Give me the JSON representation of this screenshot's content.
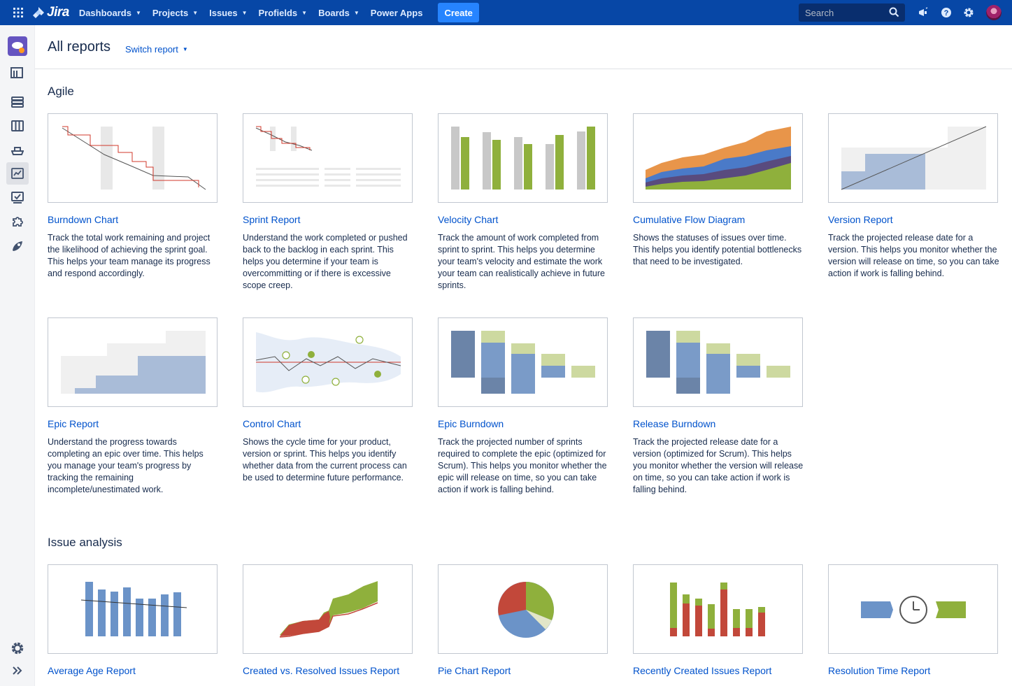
{
  "topnav": {
    "logo_text": "Jira",
    "items": [
      {
        "label": "Dashboards",
        "dropdown": true
      },
      {
        "label": "Projects",
        "dropdown": true
      },
      {
        "label": "Issues",
        "dropdown": true
      },
      {
        "label": "Profields",
        "dropdown": true
      },
      {
        "label": "Boards",
        "dropdown": true
      },
      {
        "label": "Power Apps",
        "dropdown": false
      }
    ],
    "create_label": "Create",
    "search_placeholder": "Search"
  },
  "header": {
    "title": "All reports",
    "switch_label": "Switch report"
  },
  "sections": {
    "agile": "Agile",
    "issue_analysis": "Issue analysis"
  },
  "agile_reports": [
    {
      "title": "Burndown Chart",
      "desc": "Track the total work remaining and project the likelihood of achieving the sprint goal. This helps your team manage its progress and respond accordingly."
    },
    {
      "title": "Sprint Report",
      "desc": "Understand the work completed or pushed back to the backlog in each sprint. This helps you determine if your team is overcommitting or if there is excessive scope creep."
    },
    {
      "title": "Velocity Chart",
      "desc": "Track the amount of work completed from sprint to sprint. This helps you determine your team's velocity and estimate the work your team can realistically achieve in future sprints."
    },
    {
      "title": "Cumulative Flow Diagram",
      "desc": "Shows the statuses of issues over time. This helps you identify potential bottlenecks that need to be investigated."
    },
    {
      "title": "Version Report",
      "desc": "Track the projected release date for a version. This helps you monitor whether the version will release on time, so you can take action if work is falling behind."
    },
    {
      "title": "Epic Report",
      "desc": "Understand the progress towards completing an epic over time. This helps you manage your team's progress by tracking the remaining incomplete/unestimated work."
    },
    {
      "title": "Control Chart",
      "desc": "Shows the cycle time for your product, version or sprint. This helps you identify whether data from the current process can be used to determine future performance."
    },
    {
      "title": "Epic Burndown",
      "desc": "Track the projected number of sprints required to complete the epic (optimized for Scrum). This helps you monitor whether the epic will release on time, so you can take action if work is falling behind."
    },
    {
      "title": "Release Burndown",
      "desc": "Track the projected release date for a version (optimized for Scrum). This helps you monitor whether the version will release on time, so you can take action if work is falling behind."
    }
  ],
  "issue_reports": [
    {
      "title": "Average Age Report"
    },
    {
      "title": "Created vs. Resolved Issues Report"
    },
    {
      "title": "Pie Chart Report"
    },
    {
      "title": "Recently Created Issues Report"
    },
    {
      "title": "Resolution Time Report"
    }
  ],
  "colors": {
    "nav_bg": "#0747a6",
    "link": "#0052cc",
    "chart_green": "#8fb03c",
    "chart_blue": "#6b93c8",
    "chart_red": "#c2483a",
    "chart_orange": "#e8954a",
    "chart_purple": "#594b7e"
  }
}
